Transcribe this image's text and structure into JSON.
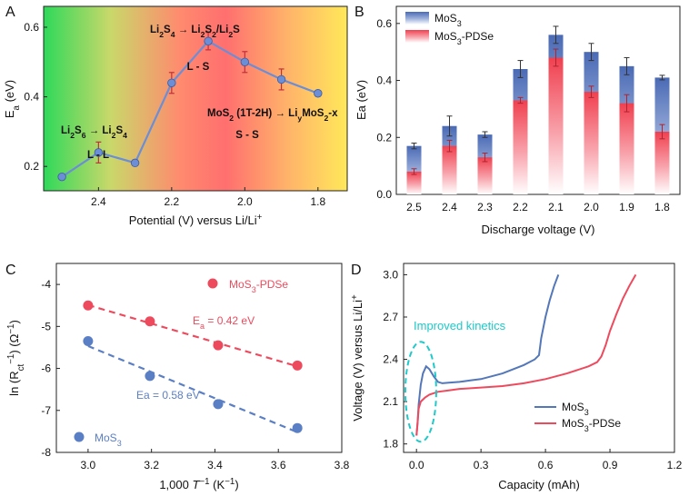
{
  "panels": [
    {
      "label": "A",
      "chart_data": {
        "type": "line",
        "xlabel": "Potential (V) versus Li/Li+",
        "ylabel": "Ea (eV)",
        "xlim": [
          2.55,
          1.72
        ],
        "ylim": [
          0.13,
          0.66
        ],
        "xticks": [
          2.4,
          2.2,
          2.0,
          1.8
        ],
        "yticks": [
          0.2,
          0.4,
          0.6
        ],
        "x": [
          2.5,
          2.4,
          2.3,
          2.2,
          2.1,
          2.0,
          1.9,
          1.8
        ],
        "y": [
          0.17,
          0.24,
          0.21,
          0.44,
          0.56,
          0.5,
          0.45,
          0.41
        ],
        "err": [
          0.005,
          0.03,
          0.008,
          0.03,
          0.025,
          0.03,
          0.03,
          0.005
        ],
        "annotations": [
          {
            "title": "Li2S6 → Li2S4",
            "sub": "L - L"
          },
          {
            "title": "Li2S4 → Li2S2/Li2S",
            "sub": "L - S"
          },
          {
            "title": "MoS2 (1T-2H) → LiyMoS2-x",
            "sub": "S - S"
          }
        ]
      }
    },
    {
      "label": "B",
      "chart_data": {
        "type": "bar",
        "xlabel": "Discharge voltage (V)",
        "ylabel": "Ea (eV)",
        "ylim": [
          0,
          0.66
        ],
        "yticks": [
          0.0,
          0.2,
          0.4,
          0.6
        ],
        "categories": [
          "2.5",
          "2.4",
          "2.3",
          "2.2",
          "2.1",
          "2.0",
          "1.9",
          "1.8"
        ],
        "series": [
          {
            "name": "MoS3",
            "color": "#4f6fb8",
            "values": [
              0.17,
              0.24,
              0.21,
              0.44,
              0.56,
              0.5,
              0.45,
              0.41
            ],
            "err": [
              0.01,
              0.035,
              0.01,
              0.03,
              0.03,
              0.03,
              0.03,
              0.008
            ]
          },
          {
            "name": "MoS3-PDSe",
            "color": "#f04b5b",
            "values": [
              0.08,
              0.17,
              0.13,
              0.33,
              0.48,
              0.36,
              0.32,
              0.22
            ],
            "err": [
              0.01,
              0.02,
              0.015,
              0.01,
              0.03,
              0.02,
              0.03,
              0.025
            ]
          }
        ]
      }
    },
    {
      "label": "C",
      "chart_data": {
        "type": "scatter",
        "xlabel": "1,000 T−1 (K−1)",
        "ylabel": "ln (Rct−1) (Ω−1)",
        "xlim": [
          2.9,
          3.8
        ],
        "ylim": [
          -8.0,
          -3.5
        ],
        "xticks": [
          3.0,
          3.2,
          3.4,
          3.6,
          3.8
        ],
        "yticks": [
          -4,
          -5,
          -6,
          -7,
          -8
        ],
        "series": [
          {
            "name": "MoS3-PDSe",
            "color": "#ee4a5e",
            "x": [
              3.0,
              3.195,
              3.41,
              3.66
            ],
            "y": [
              -4.5,
              -4.88,
              -5.45,
              -5.93
            ],
            "fit_label": "Ea = 0.42 eV"
          },
          {
            "name": "MoS3",
            "color": "#5b7fc4",
            "x": [
              3.0,
              3.195,
              3.41,
              3.66
            ],
            "y": [
              -5.35,
              -6.18,
              -6.85,
              -7.42
            ],
            "fit_label": "Ea = 0.58 eV"
          }
        ]
      }
    },
    {
      "label": "D",
      "chart_data": {
        "type": "line",
        "xlabel": "Capacity (mAh)",
        "ylabel": "Voltage (V) versus Li/Li+",
        "xlim": [
          -0.06,
          1.2
        ],
        "ylim": [
          1.74,
          3.08
        ],
        "xticks": [
          0.0,
          0.3,
          0.6,
          0.9,
          1.2
        ],
        "yticks": [
          1.8,
          2.1,
          2.4,
          2.7,
          3.0
        ],
        "annotation": "Improved kinetics",
        "series": [
          {
            "name": "MoS3",
            "color": "#5377b8",
            "x": [
              0.0,
              0.005,
              0.01,
              0.02,
              0.03,
              0.045,
              0.06,
              0.08,
              0.1,
              0.12,
              0.15,
              0.2,
              0.25,
              0.3,
              0.35,
              0.4,
              0.45,
              0.5,
              0.55,
              0.57,
              0.58,
              0.6,
              0.62,
              0.64,
              0.66
            ],
            "y": [
              1.86,
              1.95,
              2.08,
              2.22,
              2.3,
              2.35,
              2.33,
              2.28,
              2.24,
              2.23,
              2.235,
              2.24,
              2.25,
              2.26,
              2.28,
              2.3,
              2.33,
              2.36,
              2.4,
              2.43,
              2.55,
              2.7,
              2.82,
              2.92,
              3.0
            ]
          },
          {
            "name": "MoS3-PDSe",
            "color": "#ee4a5e",
            "x": [
              0.0,
              0.005,
              0.01,
              0.02,
              0.04,
              0.06,
              0.1,
              0.15,
              0.2,
              0.3,
              0.4,
              0.5,
              0.6,
              0.7,
              0.8,
              0.84,
              0.86,
              0.88,
              0.9,
              0.93,
              0.96,
              0.99,
              1.02
            ],
            "y": [
              1.86,
              1.95,
              2.05,
              2.1,
              2.13,
              2.15,
              2.17,
              2.18,
              2.19,
              2.2,
              2.21,
              2.23,
              2.26,
              2.3,
              2.35,
              2.38,
              2.42,
              2.5,
              2.6,
              2.72,
              2.83,
              2.92,
              3.0
            ]
          }
        ]
      }
    }
  ]
}
